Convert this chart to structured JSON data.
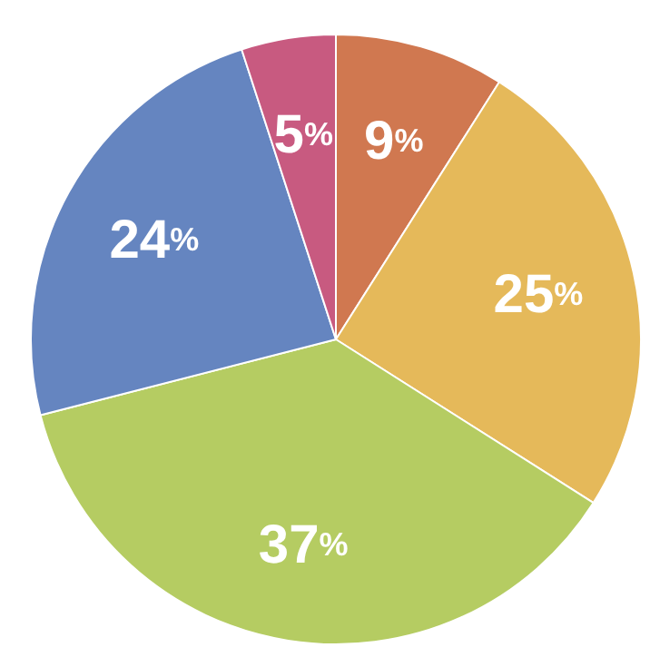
{
  "chart_data": {
    "type": "pie",
    "categories": [
      null,
      null,
      null,
      null,
      null
    ],
    "values": [
      9,
      25,
      37,
      24,
      5
    ],
    "value_labels": [
      "9%",
      "25%",
      "37%",
      "24%",
      "5%"
    ],
    "colors": [
      "#d07850",
      "#e5b95a",
      "#b5cc62",
      "#6585c0",
      "#c85a80"
    ],
    "legend": false
  }
}
